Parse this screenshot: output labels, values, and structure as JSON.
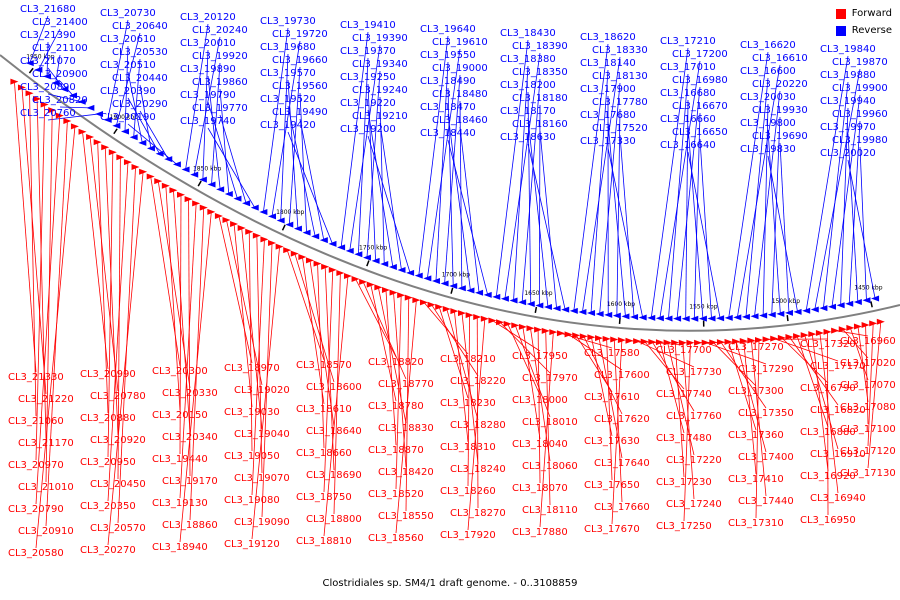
{
  "legend": {
    "forward_label": "Forward",
    "reverse_label": "Reverse",
    "forward_color": "#ff0000",
    "reverse_color": "#0000ff"
  },
  "colors": {
    "backbone": "#808080",
    "tick": "#000000",
    "label_text": "#000000"
  },
  "caption": "Clostridiales sp. SM4/1 draft genome. - 0..3108859",
  "scale_labels": [
    "1950 kbp",
    "1900 kbp",
    "1850 kbp",
    "1800 kbp",
    "1750 kbp",
    "1700 kbp",
    "1650 kbp",
    "1600 kbp",
    "1550 kbp",
    "1500 kbp",
    "1450 kbp"
  ],
  "reverse_features": [
    "CL3_21680",
    "CL3_21400",
    "CL3_21390",
    "CL3_21100",
    "CL3_21070",
    "CL3_20900",
    "CL3_20890",
    "CL3_20820",
    "CL3_20760",
    "CL3_20730",
    "CL3_20640",
    "CL3_20610",
    "CL3_20530",
    "CL3_20510",
    "CL3_20440",
    "CL3_20390",
    "CL3_20290",
    "CL3_20190",
    "CL3_20120",
    "CL3_20240",
    "CL3_20010",
    "CL3_19920",
    "CL3_19890",
    "CL3_19860",
    "CL3_19790",
    "CL3_19770",
    "CL3_19740",
    "CL3_19730",
    "CL3_19720",
    "CL3_19680",
    "CL3_19660",
    "CL3_19570",
    "CL3_19560",
    "CL3_19520",
    "CL3_19490",
    "CL3_19420",
    "CL3_19410",
    "CL3_19390",
    "CL3_19370",
    "CL3_19340",
    "CL3_19250",
    "CL3_19240",
    "CL3_19220",
    "CL3_19210",
    "CL3_19200",
    "CL3_19640",
    "CL3_19610",
    "CL3_19550",
    "CL3_19000",
    "CL3_18490",
    "CL3_18480",
    "CL3_18470",
    "CL3_18460",
    "CL3_18440",
    "CL3_18430",
    "CL3_18390",
    "CL3_18380",
    "CL3_18350",
    "CL3_18200",
    "CL3_18180",
    "CL3_18170",
    "CL3_18160",
    "CL3_18630",
    "CL3_18620",
    "CL3_18330",
    "CL3_18140",
    "CL3_18130",
    "CL3_17900",
    "CL3_17780",
    "CL3_17680",
    "CL3_17520",
    "CL3_17330",
    "CL3_17210",
    "CL3_17200",
    "CL3_17010",
    "CL3_16980",
    "CL3_16680",
    "CL3_16670",
    "CL3_16660",
    "CL3_16650",
    "CL3_16640",
    "CL3_16620",
    "CL3_16610",
    "CL3_16600",
    "CL3_20220",
    "CL3_20030",
    "CL3_19930",
    "CL3_19800",
    "CL3_19690",
    "CL3_19830",
    "CL3_19840",
    "CL3_19870",
    "CL3_19880",
    "CL3_19900",
    "CL3_19940",
    "CL3_19960",
    "CL3_19970",
    "CL3_19980",
    "CL3_20020"
  ],
  "forward_features": [
    "CL3_21330",
    "CL3_21220",
    "CL3_21060",
    "CL3_21170",
    "CL3_20970",
    "CL3_21010",
    "CL3_20790",
    "CL3_20910",
    "CL3_20580",
    "CL3_20990",
    "CL3_20780",
    "CL3_20880",
    "CL3_20920",
    "CL3_20950",
    "CL3_20450",
    "CL3_20350",
    "CL3_20570",
    "CL3_20270",
    "CL3_20300",
    "CL3_20330",
    "CL3_20150",
    "CL3_20340",
    "CL3_19440",
    "CL3_19170",
    "CL3_19130",
    "CL3_18860",
    "CL3_18940",
    "CL3_18970",
    "CL3_19020",
    "CL3_19030",
    "CL3_19040",
    "CL3_19050",
    "CL3_19070",
    "CL3_19080",
    "CL3_19090",
    "CL3_19120",
    "CL3_18570",
    "CL3_18600",
    "CL3_18610",
    "CL3_18640",
    "CL3_18660",
    "CL3_18690",
    "CL3_18750",
    "CL3_18800",
    "CL3_18810",
    "CL3_18820",
    "CL3_18770",
    "CL3_18780",
    "CL3_18830",
    "CL3_18870",
    "CL3_18420",
    "CL3_18520",
    "CL3_18550",
    "CL3_18560",
    "CL3_18210",
    "CL3_18220",
    "CL3_18230",
    "CL3_18280",
    "CL3_18310",
    "CL3_18240",
    "CL3_18260",
    "CL3_18270",
    "CL3_17920",
    "CL3_17950",
    "CL3_17970",
    "CL3_18000",
    "CL3_18010",
    "CL3_18040",
    "CL3_18060",
    "CL3_18070",
    "CL3_18110",
    "CL3_17880",
    "CL3_17580",
    "CL3_17600",
    "CL3_17610",
    "CL3_17620",
    "CL3_17630",
    "CL3_17640",
    "CL3_17650",
    "CL3_17660",
    "CL3_17670",
    "CL3_17700",
    "CL3_17730",
    "CL3_17740",
    "CL3_17760",
    "CL3_17480",
    "CL3_17220",
    "CL3_17230",
    "CL3_17240",
    "CL3_17250",
    "CL3_17270",
    "CL3_17290",
    "CL3_17300",
    "CL3_17350",
    "CL3_17360",
    "CL3_17400",
    "CL3_17410",
    "CL3_17440",
    "CL3_17310",
    "CL3_17320",
    "CL3_17170",
    "CL3_16790",
    "CL3_16820",
    "CL3_16880",
    "CL3_16910",
    "CL3_16920",
    "CL3_16940",
    "CL3_16950",
    "CL3_16960",
    "CL3_17020",
    "CL3_17070",
    "CL3_17080",
    "CL3_17100",
    "CL3_17120",
    "CL3_17130"
  ]
}
